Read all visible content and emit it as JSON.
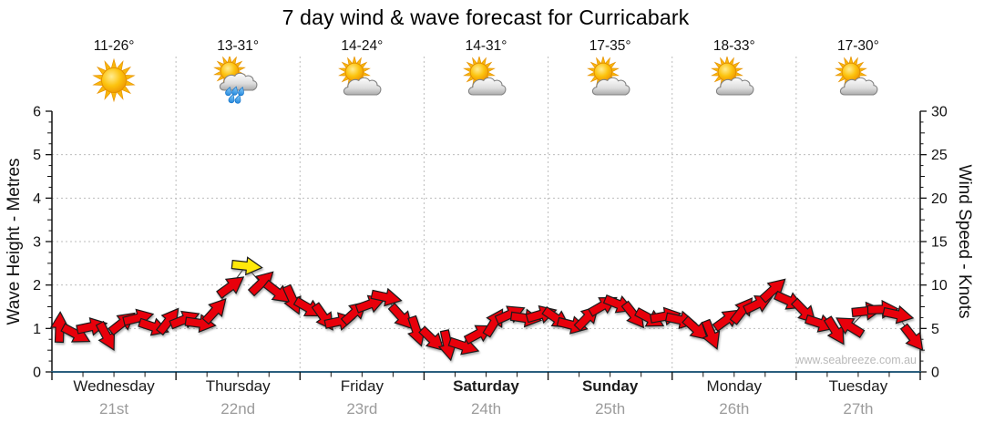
{
  "title": "7 day wind & wave forecast for Curricabark",
  "watermark": "www.seabreeze.com.au",
  "days": [
    {
      "name": "Wednesday",
      "date": "21st",
      "temp": "11-26°",
      "icon": "sunny",
      "bold": false
    },
    {
      "name": "Thursday",
      "date": "22nd",
      "temp": "13-31°",
      "icon": "showers",
      "bold": false
    },
    {
      "name": "Friday",
      "date": "23rd",
      "temp": "14-24°",
      "icon": "partly-cloudy",
      "bold": false
    },
    {
      "name": "Saturday",
      "date": "24th",
      "temp": "14-31°",
      "icon": "partly-cloudy",
      "bold": true
    },
    {
      "name": "Sunday",
      "date": "25th",
      "temp": "17-35°",
      "icon": "partly-cloudy",
      "bold": true
    },
    {
      "name": "Monday",
      "date": "26th",
      "temp": "18-33°",
      "icon": "partly-cloudy",
      "bold": false
    },
    {
      "name": "Tuesday",
      "date": "27th",
      "temp": "17-30°",
      "icon": "partly-cloudy",
      "bold": false
    }
  ],
  "chart_data": {
    "type": "wind-arrow-line",
    "title": "7 day wind & wave forecast for Curricabark",
    "left_axis": {
      "label": "Wave Height - Metres",
      "min": 0,
      "max": 6,
      "major_tick": 1,
      "minor_tick": 0.25
    },
    "right_axis": {
      "label": "Wind Speed - Knots",
      "min": 0,
      "max": 30,
      "major_tick": 5,
      "minor_tick": 1.25
    },
    "x_axis": {
      "categories": [
        "Wednesday",
        "Thursday",
        "Friday",
        "Saturday",
        "Sunday",
        "Monday",
        "Tuesday"
      ],
      "dates": [
        "21st",
        "22nd",
        "23rd",
        "24th",
        "25th",
        "26th",
        "27th"
      ],
      "ticks_per_day": 4,
      "grid_at_day_boundaries": true
    },
    "grid": {
      "horizontal_at_metres": [
        1,
        2,
        3,
        4,
        5
      ],
      "style": "dotted"
    },
    "wave_height_m": {
      "constant": 0
    },
    "wind": {
      "units": "knots",
      "samples_per_day": 8,
      "interval_hours": 3,
      "knots": [
        5.0,
        4.4,
        5.2,
        4.2,
        5.6,
        6.2,
        5.2,
        5.8,
        6.0,
        5.6,
        7.0,
        9.8,
        12.2,
        10.2,
        9.2,
        8.4,
        7.4,
        6.4,
        5.8,
        6.8,
        7.8,
        8.6,
        6.4,
        4.8,
        3.8,
        3.2,
        3.0,
        4.4,
        5.6,
        6.6,
        6.2,
        6.6,
        6.2,
        5.4,
        6.2,
        7.6,
        7.8,
        6.6,
        6.2,
        6.4,
        6.0,
        5.0,
        4.4,
        6.0,
        7.0,
        7.8,
        9.4,
        8.2,
        7.0,
        5.6,
        4.8,
        5.2,
        7.0,
        7.2,
        6.6,
        4.0
      ],
      "direction_deg_ccw_from_east": [
        88,
        -28,
        12,
        -62,
        38,
        14,
        -18,
        52,
        22,
        -8,
        48,
        36,
        -6,
        44,
        -38,
        -66,
        -30,
        -55,
        12,
        42,
        20,
        -12,
        -48,
        -72,
        -44,
        -78,
        -18,
        28,
        58,
        24,
        -8,
        16,
        -34,
        -14,
        46,
        30,
        -22,
        -52,
        -28,
        10,
        -12,
        -42,
        -68,
        36,
        52,
        26,
        42,
        -24,
        -46,
        -18,
        -58,
        148,
        6,
        2,
        -12,
        -52
      ],
      "strong_index": 12
    },
    "colors": {
      "arrow": "#e8000b",
      "arrow_strong": "#ffe80a",
      "arrow_outline": "#1b1b1b",
      "wave_line": "#2b5f7e",
      "grid": "#bdbdbd",
      "axis": "#111111",
      "date_text": "#9b9b9b",
      "watermark_text": "#b9b9b9"
    },
    "legend": "none"
  }
}
